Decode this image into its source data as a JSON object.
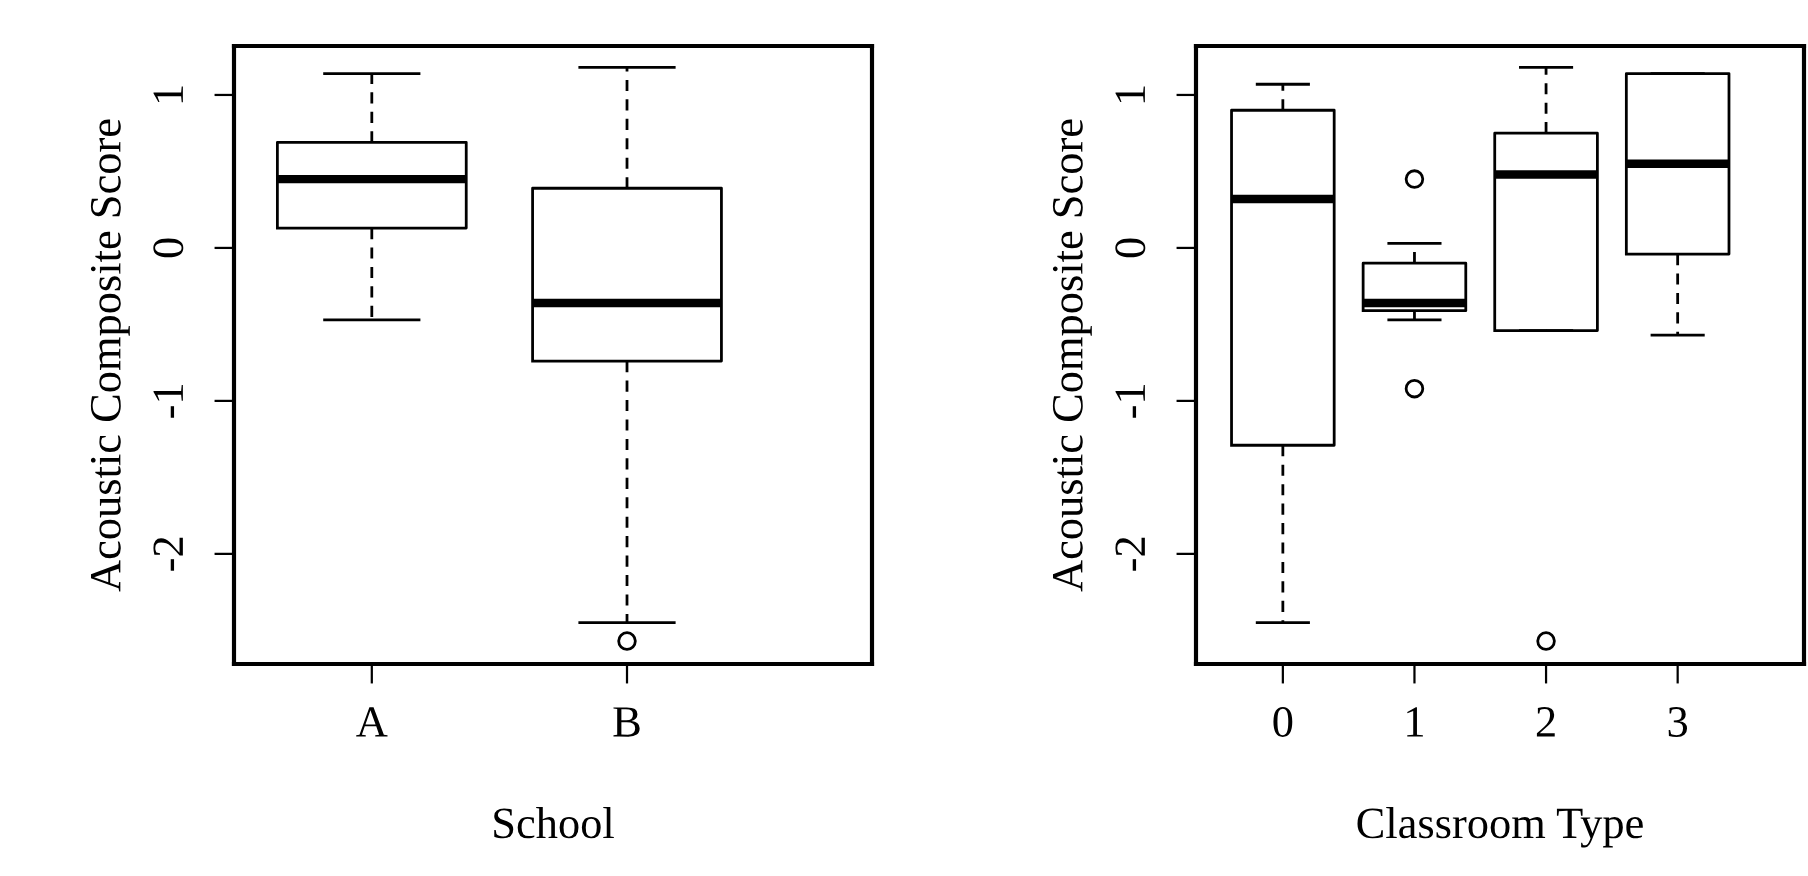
{
  "chart_data": [
    {
      "type": "box",
      "categories": [
        "A",
        "B"
      ],
      "xlabel": "School",
      "ylabel": "Acoustic Composite Score",
      "ylim": [
        -2.72,
        1.32
      ],
      "yticks": [
        -2,
        -1,
        0,
        1
      ],
      "grid": false,
      "legend": false,
      "boxes": [
        {
          "low": -0.47,
          "q1": 0.13,
          "median": 0.45,
          "q3": 0.69,
          "high": 1.14
        },
        {
          "low": -2.45,
          "q1": -0.74,
          "median": -0.36,
          "q3": 0.39,
          "high": 1.18,
          "outliers": [
            -2.57
          ]
        }
      ]
    },
    {
      "type": "box",
      "categories": [
        "0",
        "1",
        "2",
        "3"
      ],
      "xlabel": "Classroom Type",
      "ylabel": "Acoustic Composite Score",
      "ylim": [
        -2.72,
        1.32
      ],
      "yticks": [
        -2,
        -1,
        0,
        1
      ],
      "grid": false,
      "legend": false,
      "boxes": [
        {
          "low": -2.45,
          "q1": -1.29,
          "median": 0.32,
          "q3": 0.9,
          "high": 1.07
        },
        {
          "low": -0.47,
          "q1": -0.41,
          "median": -0.36,
          "q3": -0.1,
          "high": 0.03,
          "outliers": [
            0.45,
            -0.92
          ]
        },
        {
          "low": -0.54,
          "q1": -0.54,
          "median": 0.48,
          "q3": 0.75,
          "high": 1.18,
          "outliers": [
            -2.57
          ]
        },
        {
          "low": -0.57,
          "q1": -0.04,
          "median": 0.55,
          "q3": 1.14,
          "high": 1.14
        }
      ]
    }
  ]
}
